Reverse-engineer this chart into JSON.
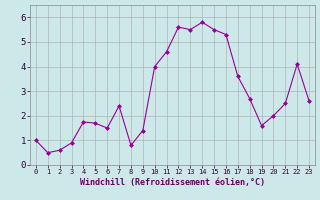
{
  "x": [
    0,
    1,
    2,
    3,
    4,
    5,
    6,
    7,
    8,
    9,
    10,
    11,
    12,
    13,
    14,
    15,
    16,
    17,
    18,
    19,
    20,
    21,
    22,
    23
  ],
  "y": [
    1.0,
    0.5,
    0.6,
    0.9,
    1.75,
    1.7,
    1.5,
    2.4,
    0.8,
    1.4,
    4.0,
    4.6,
    5.6,
    5.5,
    5.8,
    5.5,
    5.3,
    3.6,
    2.7,
    1.6,
    2.0,
    2.5,
    4.1,
    2.6
  ],
  "line_color": "#990099",
  "marker": "D",
  "marker_size": 2,
  "bg_color": "#cce8e8",
  "grid_color": "#aaaaaa",
  "xlabel": "Windchill (Refroidissement éolien,°C)",
  "xlim": [
    -0.5,
    23.5
  ],
  "ylim": [
    0,
    6.5
  ],
  "yticks": [
    0,
    1,
    2,
    3,
    4,
    5,
    6
  ],
  "xticks": [
    0,
    1,
    2,
    3,
    4,
    5,
    6,
    7,
    8,
    9,
    10,
    11,
    12,
    13,
    14,
    15,
    16,
    17,
    18,
    19,
    20,
    21,
    22,
    23
  ],
  "xlabel_fontsize": 6.0,
  "xlabel_color": "#660066",
  "tick_fontsize_x": 5.0,
  "tick_fontsize_y": 6.5
}
